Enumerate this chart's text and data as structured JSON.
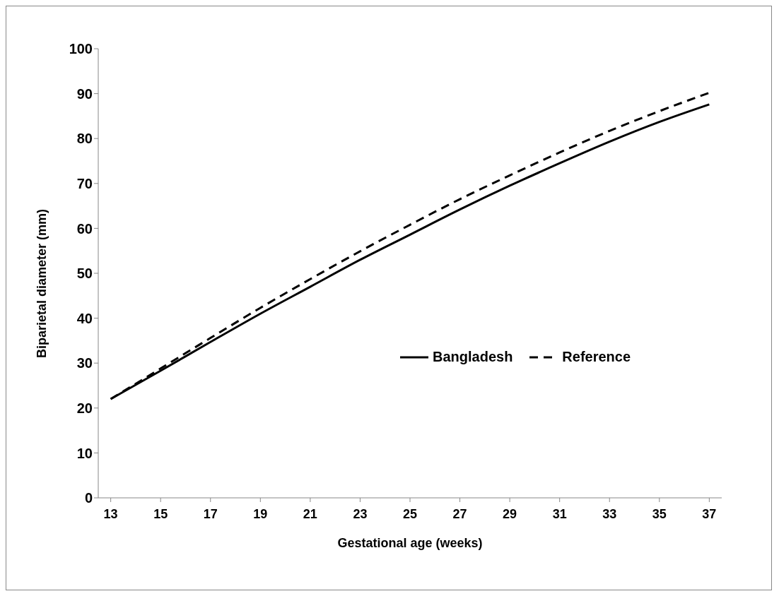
{
  "chart_data": {
    "type": "line",
    "xlabel": "Gestational  age (weeks)",
    "ylabel": "Biparietal diameter (mm)",
    "x": [
      13,
      15,
      17,
      19,
      21,
      23,
      25,
      27,
      29,
      31,
      33,
      35,
      37
    ],
    "series": [
      {
        "name": "Bangladesh",
        "color": "#000000",
        "line_style": "solid",
        "values": [
          22,
          28.3,
          34.7,
          41,
          47,
          53,
          58.6,
          64.2,
          69.5,
          74.5,
          79.3,
          83.7,
          87.6
        ]
      },
      {
        "name": "Reference",
        "color": "#000000",
        "line_style": "dashed",
        "values": [
          22,
          28.8,
          35.6,
          42.3,
          48.7,
          54.9,
          60.8,
          66.5,
          71.8,
          76.9,
          81.7,
          86.1,
          90.2
        ]
      }
    ],
    "xlim": [
      12.5,
      37.5
    ],
    "xticks": [
      13,
      15,
      17,
      19,
      21,
      23,
      25,
      27,
      29,
      31,
      33,
      35,
      37
    ],
    "ylim": [
      0,
      100
    ],
    "yticks": [
      0,
      10,
      20,
      30,
      40,
      50,
      60,
      70,
      80,
      90,
      100
    ],
    "grid": false,
    "legend": "right",
    "marker": "none"
  }
}
